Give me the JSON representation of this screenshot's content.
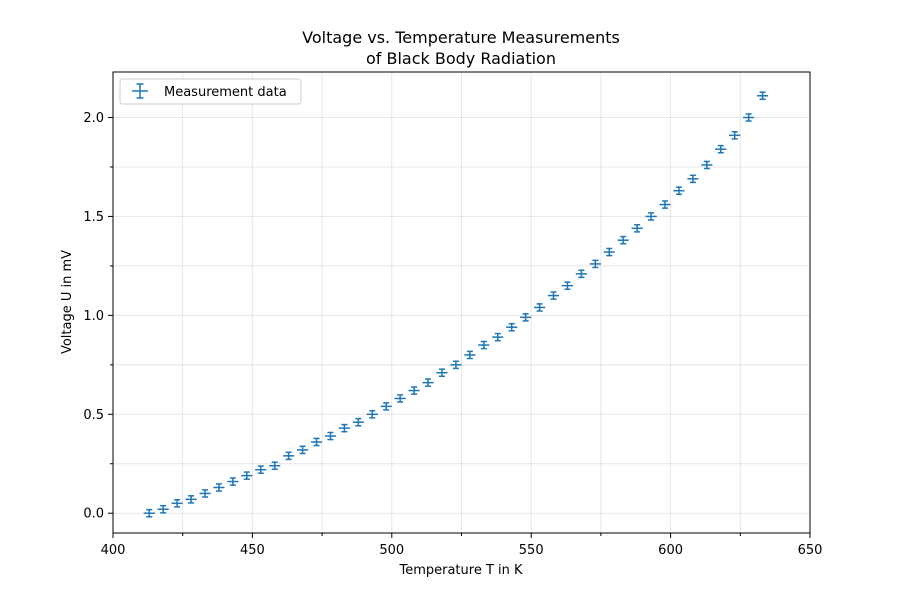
{
  "chart_data": {
    "type": "scatter",
    "title_lines": [
      "Voltage vs. Temperature Measurements",
      "of Black Body Radiation"
    ],
    "xlabel": "Temperature T in K",
    "ylabel": "Voltage U in mV",
    "xlim": [
      400,
      650
    ],
    "ylim": [
      -0.1,
      2.23
    ],
    "xticks": [
      {
        "value": 400,
        "label": "400"
      },
      {
        "value": 450,
        "label": "450"
      },
      {
        "value": 500,
        "label": "500"
      },
      {
        "value": 550,
        "label": "550"
      },
      {
        "value": 600,
        "label": "600"
      },
      {
        "value": 650,
        "label": "650"
      }
    ],
    "yticks": [
      {
        "value": 0.0,
        "label": "0.0"
      },
      {
        "value": 0.5,
        "label": "0.5"
      },
      {
        "value": 1.0,
        "label": "1.0"
      },
      {
        "value": 1.5,
        "label": "1.5"
      },
      {
        "value": 2.0,
        "label": "2.0"
      }
    ],
    "x_minor_ticks": [
      425,
      475,
      525,
      575,
      625
    ],
    "y_minor_ticks": [
      0.25,
      0.75,
      1.25,
      1.75
    ],
    "grid": true,
    "legend_position": "upper-left",
    "color": "#1f77b4",
    "series": [
      {
        "name": "Measurement data",
        "x": [
          413,
          418,
          423,
          428,
          433,
          438,
          443,
          448,
          453,
          458,
          463,
          468,
          473,
          478,
          483,
          488,
          493,
          498,
          503,
          508,
          513,
          518,
          523,
          528,
          533,
          538,
          543,
          548,
          553,
          558,
          563,
          568,
          573,
          578,
          583,
          588,
          593,
          598,
          603,
          608,
          613,
          618,
          623,
          628,
          633
        ],
        "y": [
          0.0,
          0.02,
          0.05,
          0.07,
          0.1,
          0.13,
          0.16,
          0.19,
          0.22,
          0.24,
          0.29,
          0.32,
          0.36,
          0.39,
          0.43,
          0.46,
          0.5,
          0.54,
          0.58,
          0.62,
          0.66,
          0.71,
          0.75,
          0.8,
          0.85,
          0.89,
          0.94,
          0.99,
          1.04,
          1.1,
          1.15,
          1.21,
          1.26,
          1.32,
          1.38,
          1.44,
          1.5,
          1.56,
          1.63,
          1.69,
          1.76,
          1.84,
          1.91,
          2.0,
          2.11
        ],
        "xerr": 2,
        "yerr": 0.018
      }
    ]
  }
}
